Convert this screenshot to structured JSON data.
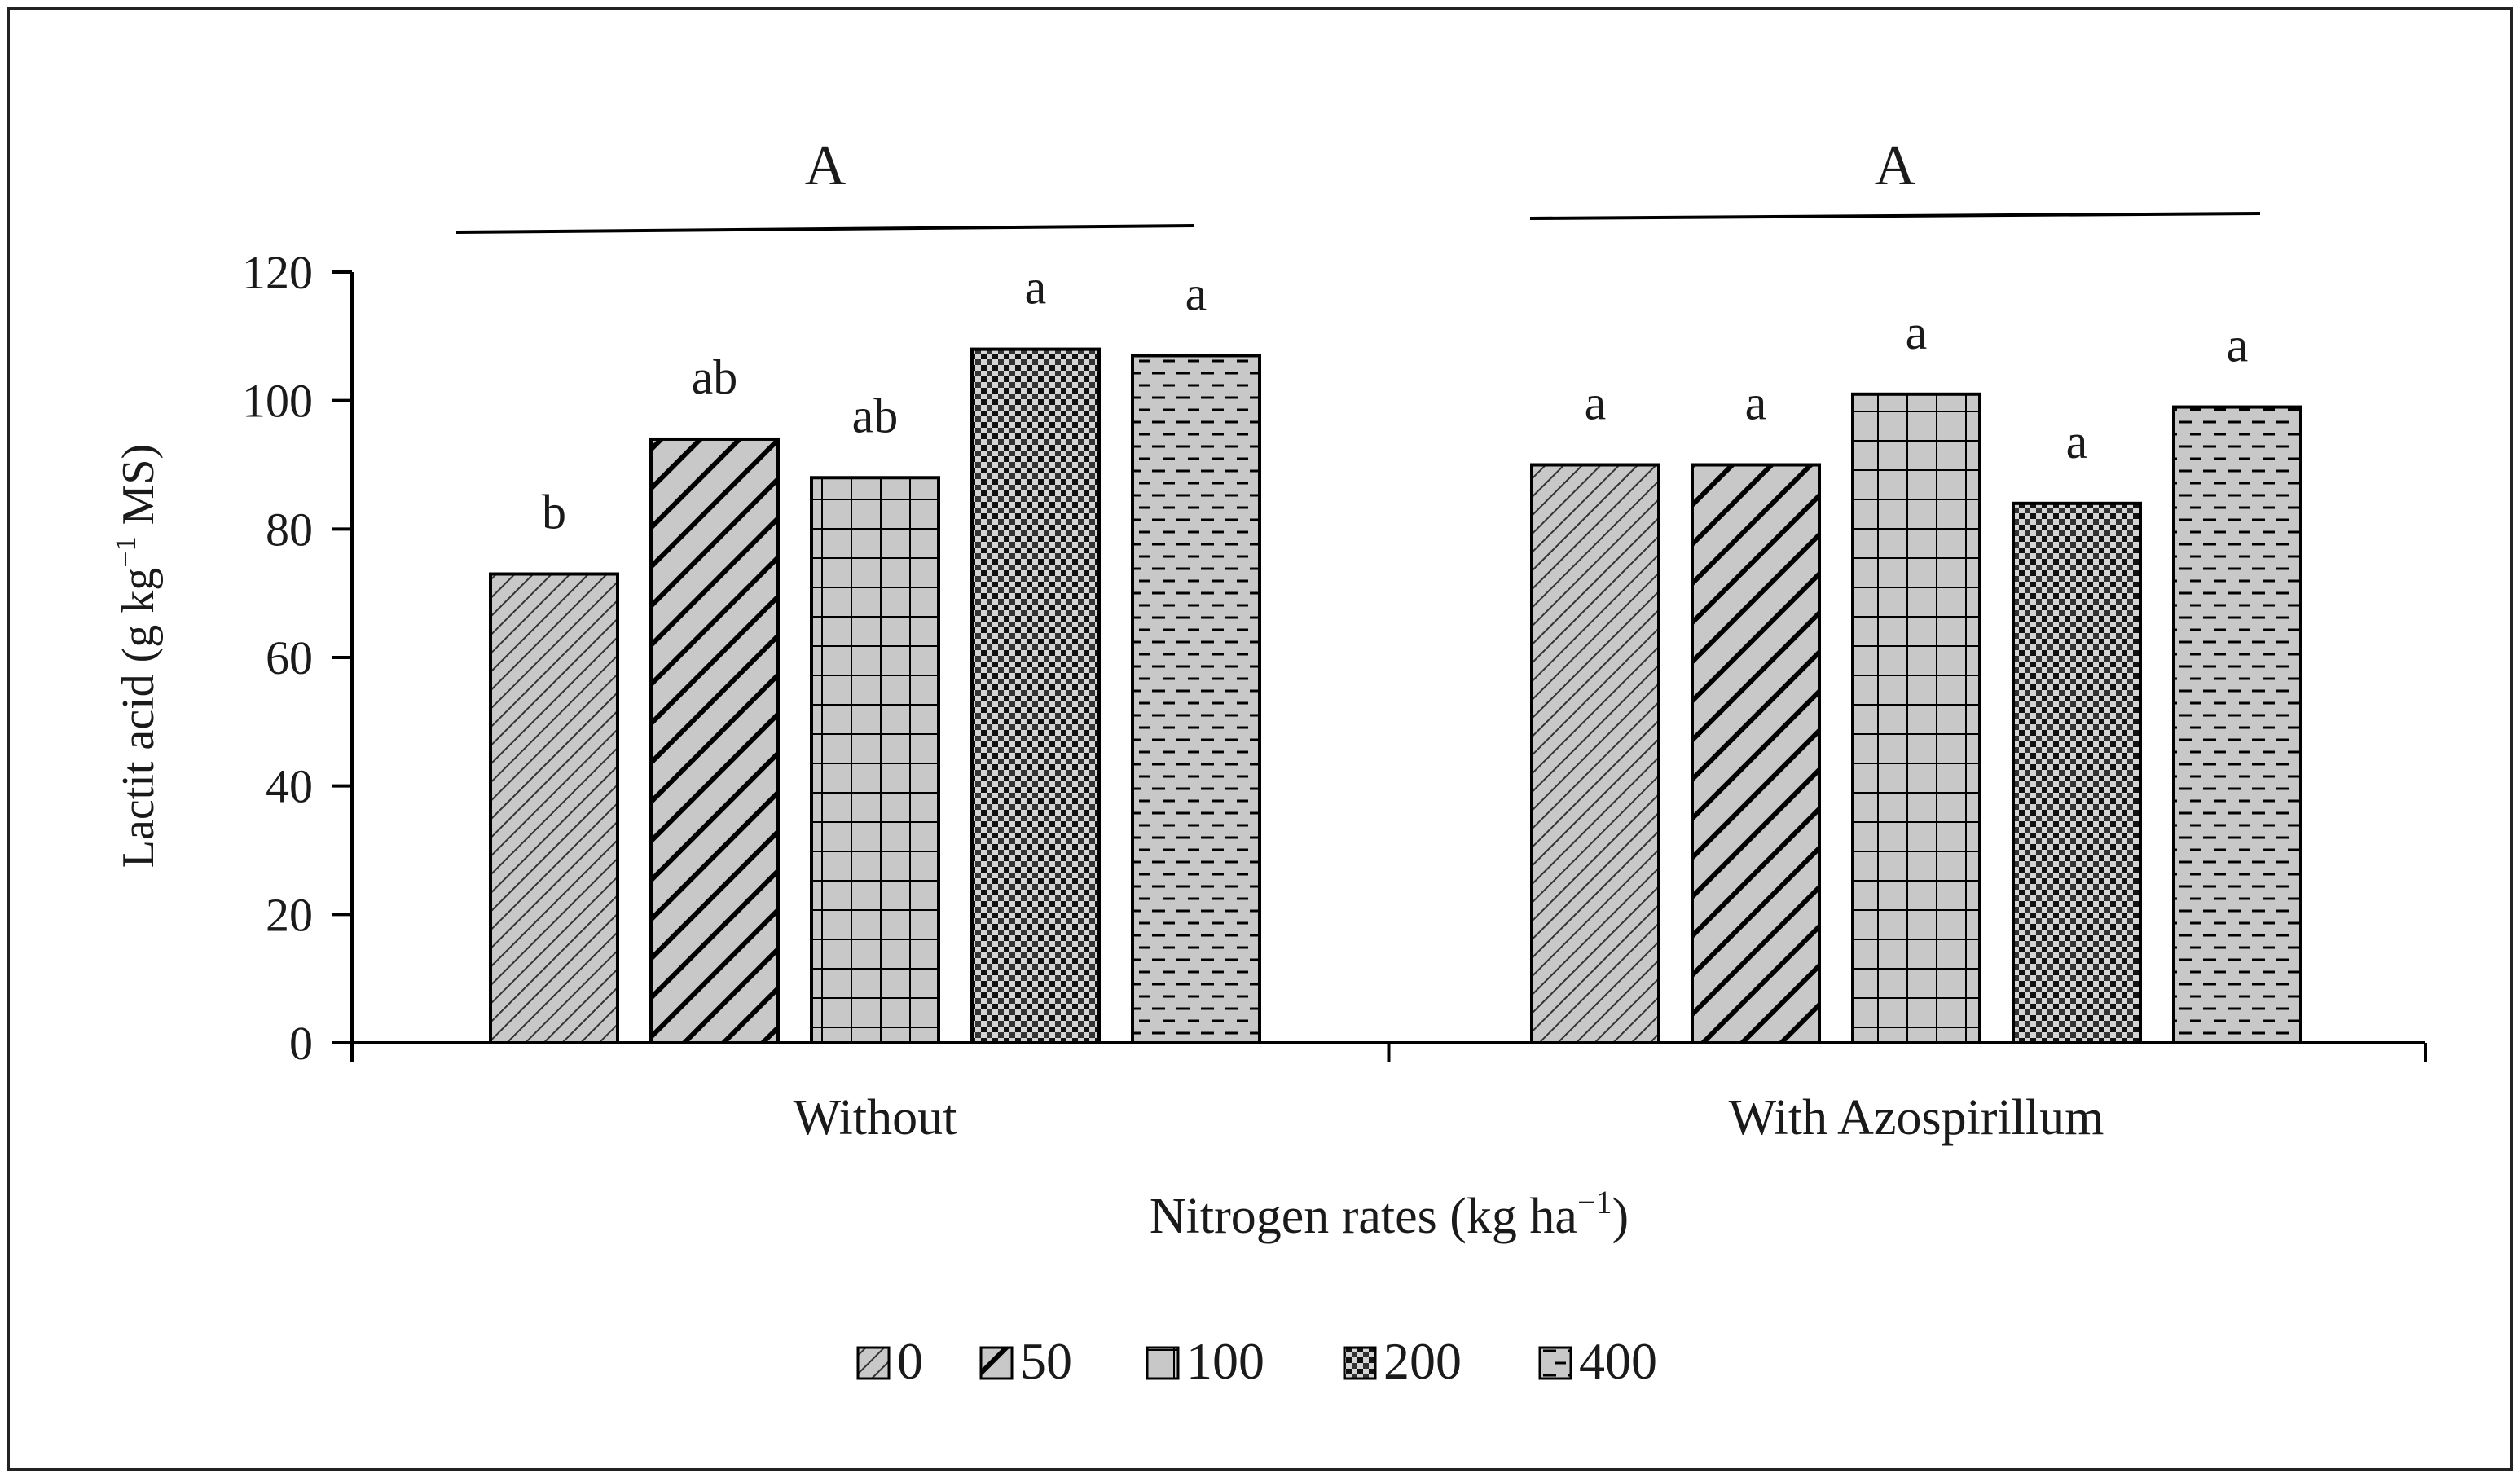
{
  "chart_data": {
    "type": "bar",
    "xlabel": "Nitrogen rates (kg ha",
    "xlabel_sup": "−1",
    "xlabel_end": ")",
    "ylabel": "Lactit acid (g kg",
    "ylabel_sup": "−1",
    "ylabel_end": " MS)",
    "ylim": [
      0,
      120
    ],
    "yticks": [
      "0",
      "20",
      "40",
      "60",
      "80",
      "100",
      "120"
    ],
    "grid": false,
    "legend_position": "bottom",
    "legend": [
      "0",
      "50",
      "100",
      "200",
      "400"
    ],
    "groups": [
      {
        "label": "Without",
        "group_letter": "A",
        "values": [
          73,
          94,
          88,
          108,
          107
        ],
        "letters": [
          "b",
          "ab",
          "ab",
          "a",
          "a"
        ]
      },
      {
        "label": "With Azospirillum",
        "group_letter": "A",
        "values": [
          90,
          90,
          101,
          84,
          99
        ],
        "letters": [
          "a",
          "a",
          "a",
          "a",
          "a"
        ]
      }
    ],
    "series_fill": "#c8c8c8",
    "series_patterns": [
      "fine-diagonal",
      "wide-diagonal",
      "grid",
      "dots",
      "dashes"
    ]
  }
}
